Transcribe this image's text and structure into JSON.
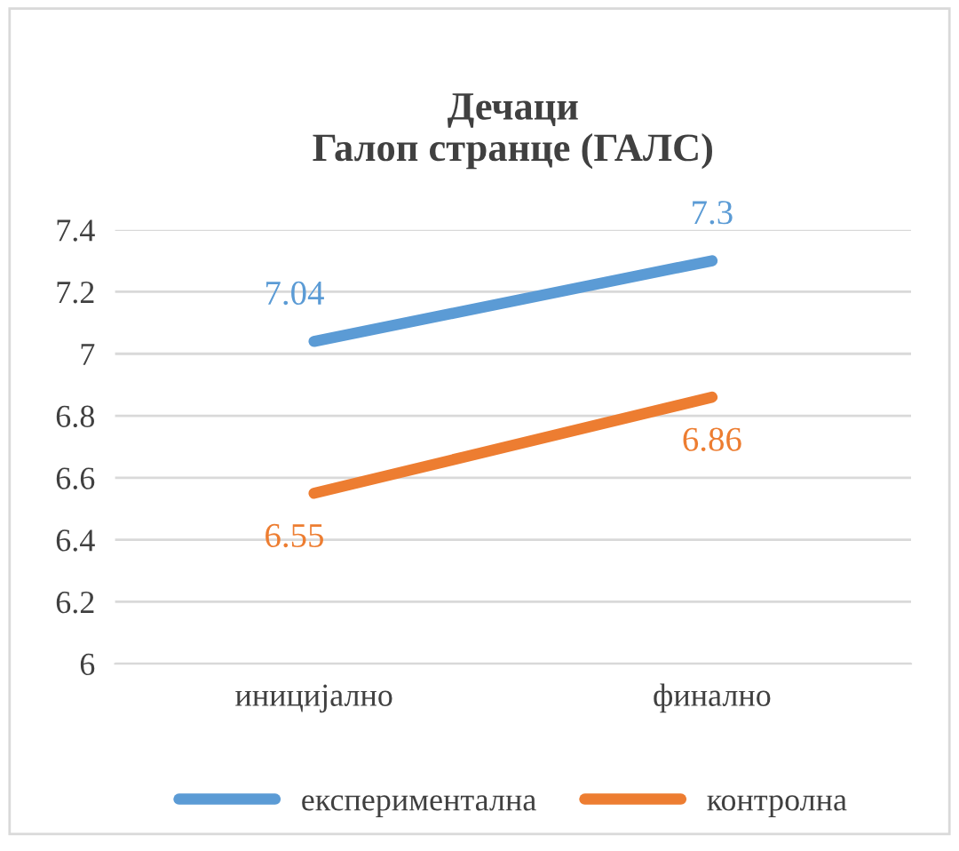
{
  "chart_data": {
    "type": "line",
    "title": "Дечаци\nГалоп странце (ГАЛС)",
    "categories": [
      "иницијално",
      "финално"
    ],
    "series": [
      {
        "name": "експериментална",
        "color": "#5b9bd5",
        "values": [
          7.04,
          7.3
        ]
      },
      {
        "name": "контролна",
        "color": "#ed7d31",
        "values": [
          6.55,
          6.86
        ]
      }
    ],
    "ylim": [
      6,
      7.4
    ],
    "yticks": [
      6,
      6.2,
      6.4,
      6.6,
      6.8,
      7,
      7.2,
      7.4
    ],
    "grid": "y",
    "legend": "bottom",
    "data_labels": true,
    "marker": "none",
    "line_style": "solid"
  }
}
